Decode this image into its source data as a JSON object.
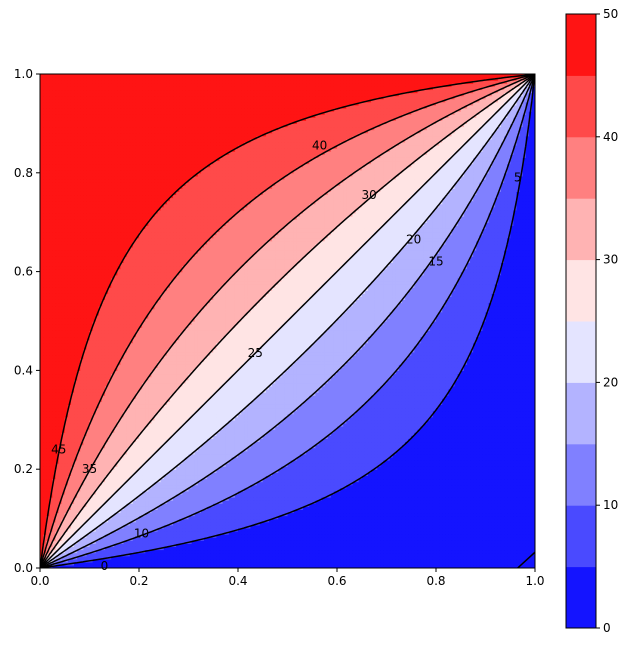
{
  "chart_data": {
    "type": "contour",
    "title": "",
    "xlabel": "",
    "ylabel": "",
    "xlim": [
      0,
      1
    ],
    "ylim": [
      0,
      1
    ],
    "x_ticks": [
      0.0,
      0.2,
      0.4,
      0.6,
      0.8,
      1.0
    ],
    "x_tick_labels": [
      "0.0",
      "0.2",
      "0.4",
      "0.6",
      "0.8",
      "1.0"
    ],
    "y_ticks": [
      0.0,
      0.2,
      0.4,
      0.6,
      0.8,
      1.0
    ],
    "y_tick_labels": [
      "0.0",
      "0.2",
      "0.4",
      "0.6",
      "0.8",
      "1.0"
    ],
    "levels": [
      0,
      5,
      10,
      15,
      20,
      25,
      30,
      35,
      40,
      45,
      50
    ],
    "band_colors": [
      "#1414ff",
      "#4a4aff",
      "#8080ff",
      "#b3b3ff",
      "#e4e4ff",
      "#ffe4e4",
      "#ffb3b3",
      "#ff8080",
      "#ff4a4a",
      "#ff1414"
    ],
    "line_color": "#000000",
    "contour_labels": [
      {
        "level": 0,
        "text": "0",
        "x": 0.13,
        "y": 0.004
      },
      {
        "level": 5,
        "text": "5",
        "x": 0.965,
        "y": 0.79
      },
      {
        "level": 10,
        "text": "10",
        "x": 0.205,
        "y": 0.07
      },
      {
        "level": 15,
        "text": "15",
        "x": 0.8,
        "y": 0.62
      },
      {
        "level": 20,
        "text": "20",
        "x": 0.755,
        "y": 0.665
      },
      {
        "level": 25,
        "text": "25",
        "x": 0.435,
        "y": 0.435
      },
      {
        "level": 30,
        "text": "30",
        "x": 0.665,
        "y": 0.755
      },
      {
        "level": 35,
        "text": "35",
        "x": 0.1,
        "y": 0.2
      },
      {
        "level": 40,
        "text": "40",
        "x": 0.565,
        "y": 0.855
      },
      {
        "level": 45,
        "text": "45",
        "x": 0.038,
        "y": 0.24
      }
    ],
    "colorbar": {
      "ticks": [
        0,
        10,
        20,
        30,
        40,
        50
      ],
      "tick_labels": [
        "0",
        "10",
        "20",
        "30",
        "40",
        "50"
      ]
    }
  }
}
